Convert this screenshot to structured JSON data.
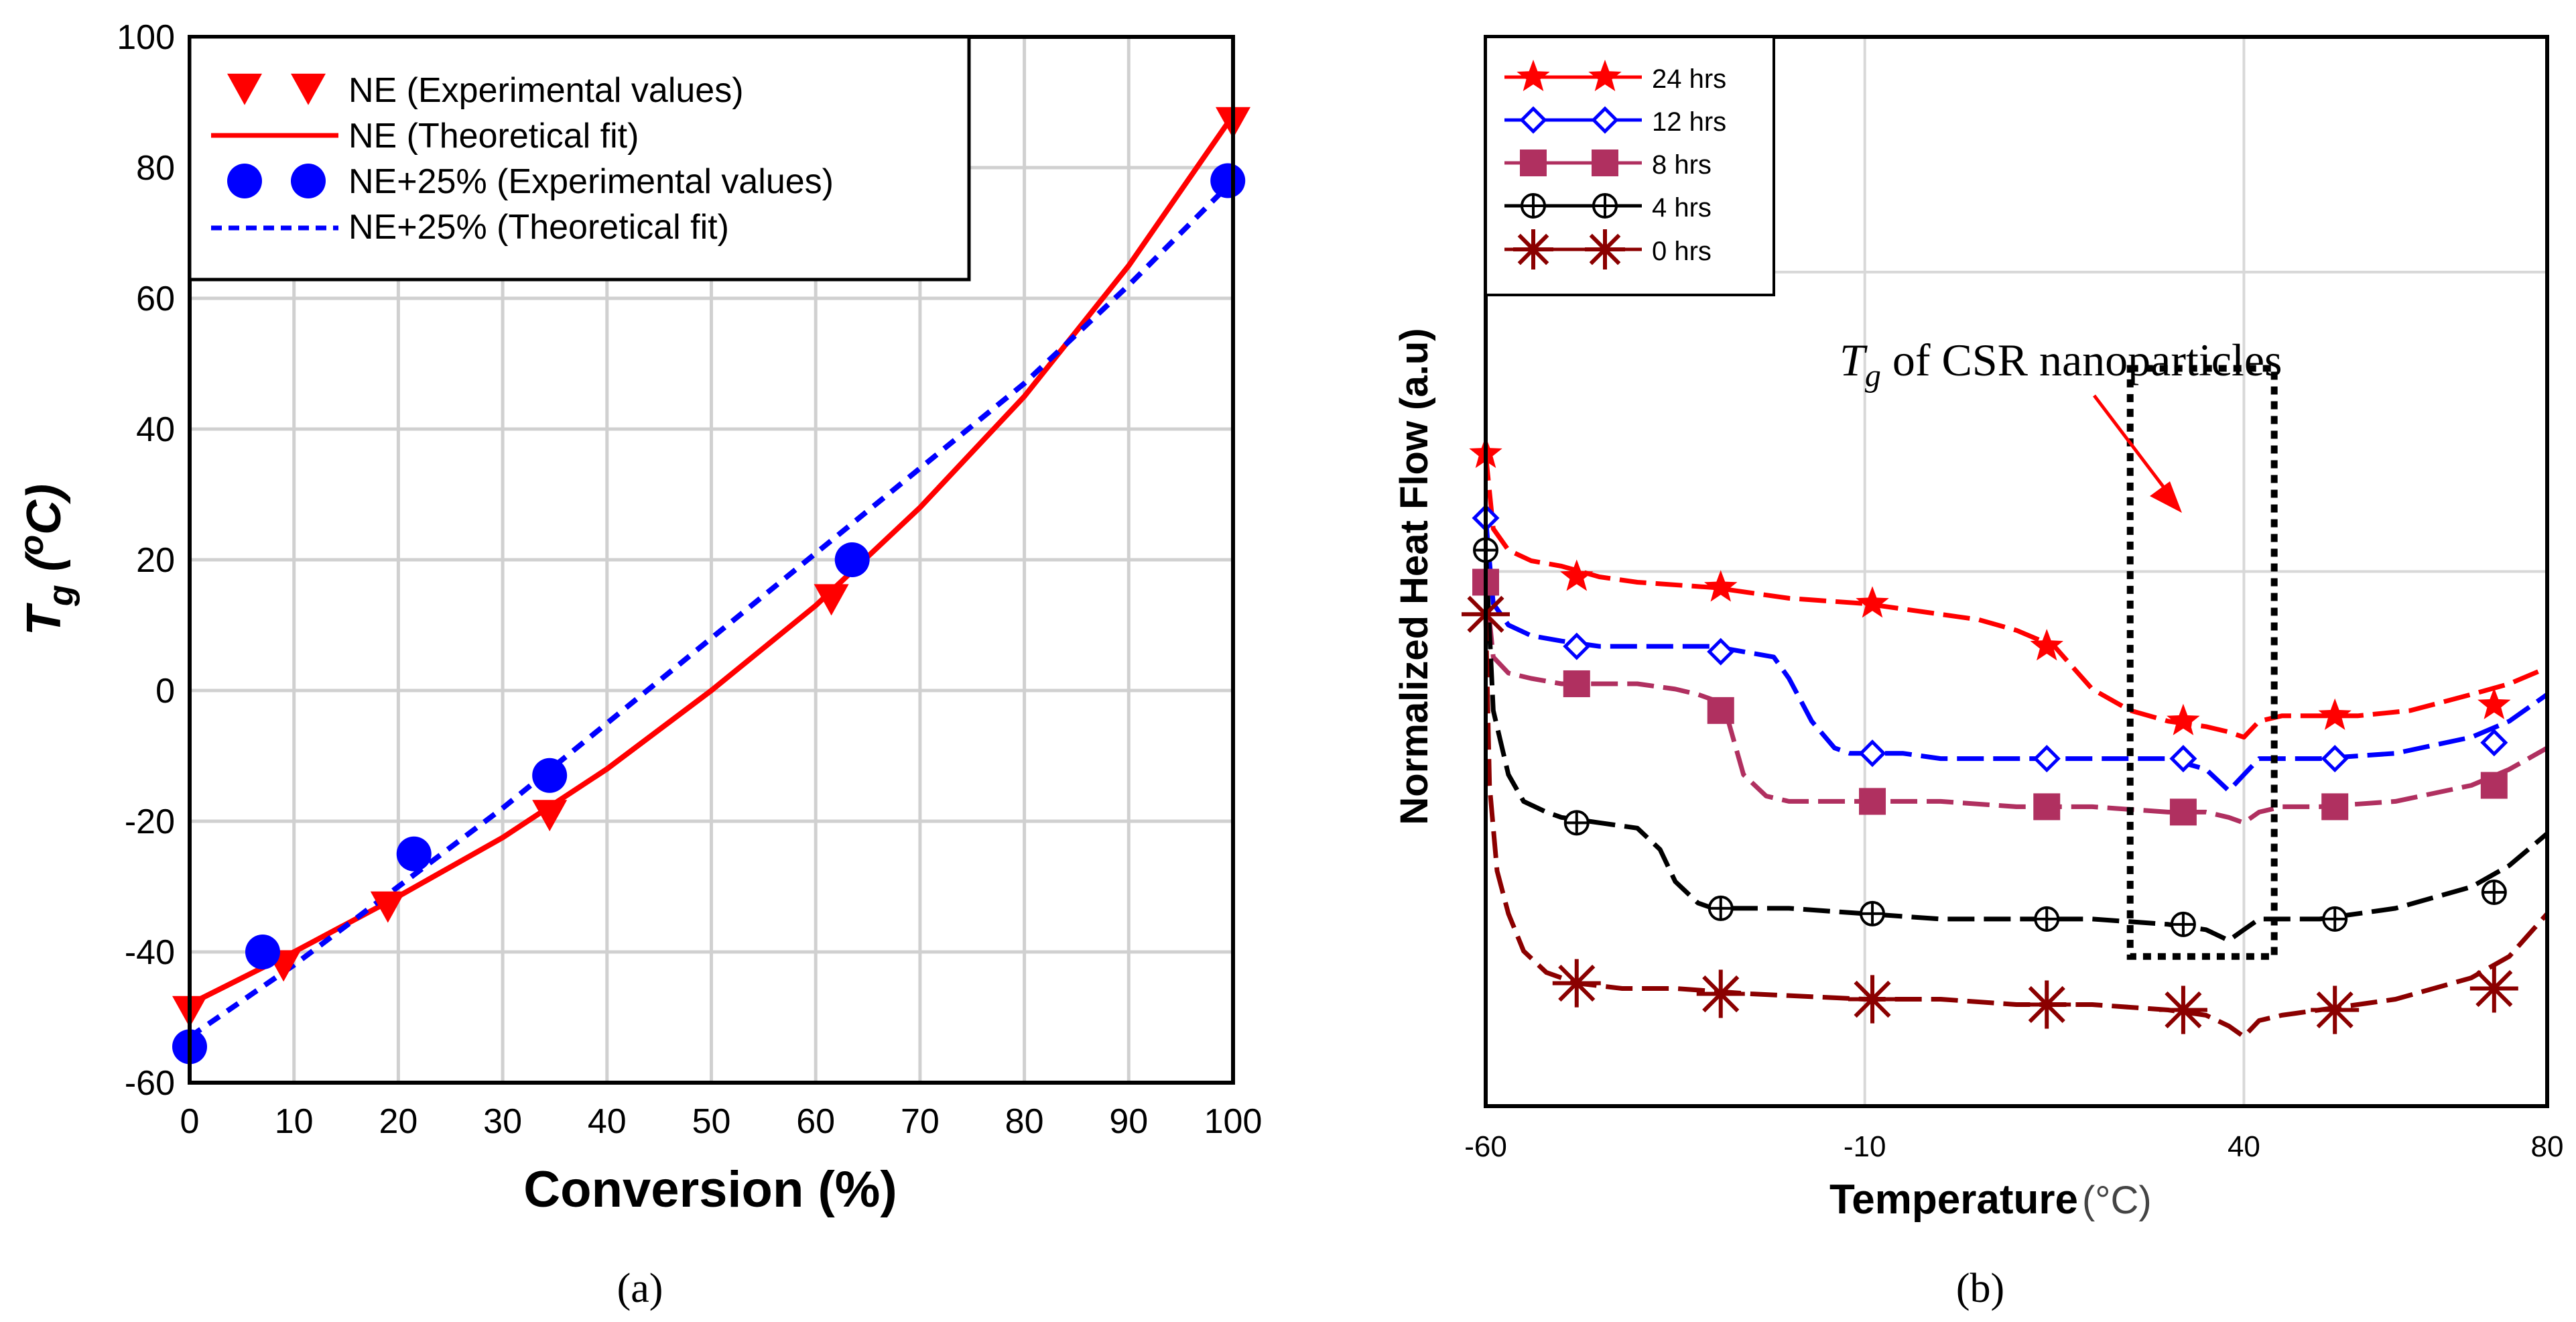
{
  "figure": {
    "panel_a_caption": "(a)",
    "panel_b_caption": "(b)"
  },
  "chart_data": [
    {
      "type": "line",
      "panel": "a",
      "title": "",
      "xlabel": "Conversion (%)",
      "ylabel_main": "T",
      "ylabel_sub": "g",
      "ylabel_unit_open": " (",
      "ylabel_unit_sup": "o",
      "ylabel_unit_close": "C)",
      "xlim": [
        0,
        100
      ],
      "ylim": [
        -60,
        100
      ],
      "xticks": [
        0,
        10,
        20,
        30,
        40,
        50,
        60,
        70,
        80,
        90,
        100
      ],
      "yticks": [
        -60,
        -40,
        -20,
        0,
        20,
        40,
        60,
        80,
        100
      ],
      "grid": true,
      "legend_position": "top-left",
      "series": [
        {
          "name": "NE (Experimental values)",
          "style": "marker",
          "marker": "triangle-down",
          "color": "#ff0000",
          "x": [
            0,
            9,
            19,
            34.5,
            61.5,
            100
          ],
          "y": [
            -49,
            -42,
            -33,
            -19,
            14,
            87
          ]
        },
        {
          "name": "NE (Theoretical fit)",
          "style": "solid",
          "color": "#ff0000",
          "x": [
            0,
            10,
            20,
            30,
            40,
            50,
            60,
            70,
            80,
            90,
            100
          ],
          "y": [
            -48,
            -40,
            -31.5,
            -22.5,
            -12,
            0,
            13,
            28,
            45,
            65,
            88
          ]
        },
        {
          "name": "NE+25% (Experimental values)",
          "style": "marker",
          "marker": "circle",
          "color": "#0000ff",
          "x": [
            0,
            7,
            21.5,
            34.5,
            63.5,
            99.5
          ],
          "y": [
            -54.5,
            -40,
            -25,
            -13,
            20,
            78
          ]
        },
        {
          "name": "NE+25% (Theoretical fit)",
          "style": "dashed",
          "color": "#0000ff",
          "x": [
            0,
            10,
            20,
            30,
            40,
            50,
            60,
            70,
            80,
            90,
            100
          ],
          "y": [
            -53,
            -42,
            -30,
            -18,
            -5,
            8,
            21,
            34,
            47,
            62,
            78
          ]
        }
      ]
    },
    {
      "type": "line",
      "panel": "b",
      "title": "",
      "xlabel": "Temperature",
      "xlabel_unit": "(°C)",
      "ylabel": "Normalized Heat Flow (a.u)",
      "xlim": [
        -60,
        80
      ],
      "ylim": [
        0,
        100
      ],
      "xticks": [
        -60,
        -10,
        40,
        80
      ],
      "xticklabels": [
        "-60",
        "-10",
        "40",
        "80"
      ],
      "ygrid_values": [
        78,
        50
      ],
      "grid": true,
      "legend_position": "top-left",
      "annotation": {
        "text_main": "T",
        "text_sub": "g",
        "text_rest": " of CSR nanoparticles",
        "box_x": [
          25,
          44
        ],
        "box_y": [
          14,
          69
        ]
      },
      "series": [
        {
          "name": "24 hrs",
          "color": "#ff0000",
          "marker": "star",
          "x": [
            -60,
            -59,
            -57,
            -54,
            -50,
            -45,
            -40,
            -30,
            -20,
            -10,
            0,
            5,
            10,
            15,
            20,
            25,
            30,
            35,
            38,
            40,
            42,
            45,
            48,
            55,
            62,
            70,
            75,
            80
          ],
          "y": [
            61,
            54,
            52,
            51,
            50.5,
            49.5,
            49,
            48.5,
            47.5,
            47,
            46,
            45.5,
            44.5,
            43,
            39,
            37,
            36,
            35.5,
            35,
            34.5,
            36,
            36.5,
            36.5,
            36.5,
            37,
            38.5,
            39.5,
            41
          ],
          "marker_x": [
            -60,
            -48,
            -29,
            -9,
            14,
            32,
            52,
            73
          ],
          "marker_y": [
            61,
            49.5,
            48.5,
            47,
            43,
            36,
            36.5,
            37.5
          ]
        },
        {
          "name": "12 hrs",
          "color": "#0000ff",
          "marker": "diamond-open",
          "x": [
            -60,
            -59,
            -57,
            -54,
            -50,
            -45,
            -40,
            -35,
            -30,
            -22,
            -20,
            -17,
            -14,
            -12,
            -10,
            -5,
            0,
            10,
            20,
            30,
            35,
            38,
            40,
            42,
            45,
            50,
            60,
            70,
            75,
            80
          ],
          "y": [
            55,
            47,
            45,
            44,
            43.5,
            43,
            43,
            43,
            43,
            42,
            40,
            36,
            33.5,
            33,
            33,
            33,
            32.5,
            32.5,
            32.5,
            32.5,
            31.5,
            29.5,
            31,
            32.5,
            32.5,
            32.5,
            33,
            34.5,
            36,
            38.5
          ],
          "marker_x": [
            -60,
            -48,
            -29,
            -9,
            14,
            32,
            52,
            73
          ],
          "marker_y": [
            55,
            43,
            42.5,
            33,
            32.5,
            32.5,
            32.5,
            34
          ]
        },
        {
          "name": "8 hrs",
          "color": "#b03060",
          "marker": "square",
          "x": [
            -60,
            -59,
            -57,
            -54,
            -50,
            -45,
            -40,
            -35,
            -32,
            -30,
            -28,
            -26,
            -23,
            -20,
            -10,
            0,
            10,
            20,
            30,
            35,
            38,
            40,
            42,
            45,
            50,
            60,
            70,
            75,
            80
          ],
          "y": [
            49,
            42,
            40.5,
            40,
            39.5,
            39.5,
            39.5,
            39,
            38.5,
            38,
            36,
            31,
            29,
            28.5,
            28.5,
            28.5,
            28,
            28,
            27.5,
            27.5,
            27,
            26.5,
            27.5,
            28,
            28,
            28.5,
            30,
            31.5,
            33.5
          ],
          "marker_x": [
            -60,
            -48,
            -29,
            -9,
            14,
            32,
            52,
            73
          ],
          "marker_y": [
            49,
            39.5,
            37,
            28.5,
            28,
            27.5,
            28,
            30
          ]
        },
        {
          "name": "4 hrs",
          "color": "#000000",
          "marker": "circle-cross",
          "x": [
            -60,
            -59,
            -57,
            -55,
            -52,
            -50,
            -45,
            -40,
            -37,
            -35,
            -32,
            -30,
            -25,
            -20,
            -10,
            0,
            10,
            20,
            30,
            35,
            38,
            40,
            42,
            45,
            50,
            60,
            70,
            75,
            80
          ],
          "y": [
            52,
            37,
            31,
            28.5,
            27.5,
            27,
            26.5,
            26,
            24,
            21,
            19,
            18.5,
            18.5,
            18.5,
            18,
            17.5,
            17.5,
            17.5,
            17,
            16.5,
            15.5,
            16.5,
            17.5,
            17.5,
            17.5,
            18.5,
            20.5,
            22.5,
            25.5
          ],
          "marker_x": [
            -60,
            -48,
            -29,
            -9,
            14,
            32,
            52,
            73
          ],
          "marker_y": [
            52,
            26.5,
            18.5,
            18,
            17.5,
            17,
            17.5,
            20
          ]
        },
        {
          "name": "0 hrs",
          "color": "#8b0000",
          "marker": "asterisk",
          "x": [
            -60,
            -59.5,
            -58.5,
            -57,
            -55,
            -52,
            -48,
            -42,
            -35,
            -25,
            -10,
            0,
            10,
            20,
            30,
            35,
            38,
            40,
            42,
            45,
            50,
            60,
            70,
            75,
            80
          ],
          "y": [
            46,
            30,
            22,
            18,
            14.5,
            12.5,
            11.5,
            11,
            11,
            10.5,
            10,
            10,
            9.5,
            9.5,
            9,
            8.5,
            7.5,
            6.5,
            8,
            8.5,
            9,
            10,
            12,
            14,
            18
          ],
          "marker_x": [
            -60,
            -48,
            -29,
            -9,
            14,
            32,
            52,
            73
          ],
          "marker_y": [
            46,
            11.5,
            10.5,
            10,
            9.5,
            9,
            9,
            11
          ]
        }
      ]
    }
  ]
}
